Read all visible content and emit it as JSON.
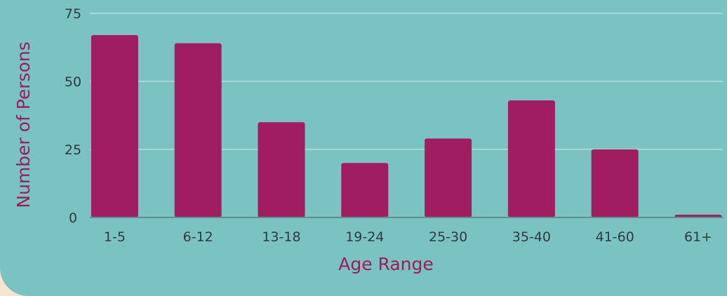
{
  "chart_data": {
    "type": "bar",
    "title": "",
    "xlabel": "Age Range",
    "ylabel": "Number of Persons",
    "categories": [
      "1-5",
      "6-12",
      "13-18",
      "19-24",
      "25-30",
      "35-40",
      "41-60",
      "61+"
    ],
    "values": [
      67,
      64,
      35,
      20,
      29,
      43,
      25,
      1
    ],
    "ylim": [
      0,
      75
    ],
    "yticks": [
      0,
      25,
      50,
      75
    ],
    "grid": true,
    "legend": "none",
    "colors": {
      "bar": "#a11d61",
      "background": "#7bc3c2",
      "gridline": "#a6d7d6",
      "baseline": "#5e8f8f",
      "tick_text": "#2f3a3d",
      "axis_title": "#9b1d5e"
    }
  }
}
